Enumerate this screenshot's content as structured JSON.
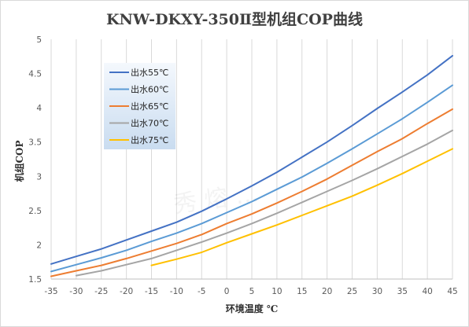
{
  "chart_data": {
    "type": "line",
    "title": "KNW-DKXY-350Ⅱ型机组COP曲线",
    "xlabel": "环境温度 ℃",
    "ylabel": "机组COP",
    "xlim": [
      -35,
      45
    ],
    "ylim": [
      1.5,
      5
    ],
    "xticks": [
      -35,
      -30,
      -25,
      -20,
      -15,
      -10,
      -5,
      0,
      5,
      10,
      15,
      20,
      25,
      30,
      35,
      40,
      45
    ],
    "yticks": [
      1.5,
      2,
      2.5,
      3,
      3.5,
      4,
      4.5,
      5
    ],
    "grid": "vertical",
    "legend_position": "upper-left inside",
    "watermark": "秀 熔 …",
    "series": [
      {
        "name": "出水55℃",
        "color": "#4472c4",
        "x": [
          -35,
          -30,
          -25,
          -20,
          -15,
          -10,
          -5,
          0,
          5,
          10,
          15,
          20,
          25,
          30,
          35,
          40,
          45
        ],
        "y": [
          1.72,
          1.83,
          1.94,
          2.07,
          2.2,
          2.33,
          2.49,
          2.67,
          2.86,
          3.06,
          3.28,
          3.5,
          3.74,
          3.99,
          4.23,
          4.48,
          4.76
        ]
      },
      {
        "name": "出水60℃",
        "color": "#5b9bd5",
        "x": [
          -35,
          -30,
          -25,
          -20,
          -15,
          -10,
          -5,
          0,
          5,
          10,
          15,
          20,
          25,
          30,
          35,
          40,
          45
        ],
        "y": [
          1.61,
          1.71,
          1.81,
          1.92,
          2.05,
          2.17,
          2.31,
          2.47,
          2.63,
          2.81,
          2.99,
          3.19,
          3.4,
          3.62,
          3.84,
          4.08,
          4.33
        ]
      },
      {
        "name": "出水65℃",
        "color": "#ed7d31",
        "x": [
          -35,
          -30,
          -25,
          -20,
          -15,
          -10,
          -5,
          0,
          5,
          10,
          15,
          20,
          25,
          30,
          35,
          40,
          45
        ],
        "y": [
          1.54,
          1.62,
          1.7,
          1.8,
          1.91,
          2.02,
          2.15,
          2.31,
          2.45,
          2.61,
          2.78,
          2.96,
          3.16,
          3.36,
          3.55,
          3.77,
          3.98
        ]
      },
      {
        "name": "出水70℃",
        "color": "#a5a5a5",
        "x": [
          -30,
          -25,
          -20,
          -15,
          -10,
          -5,
          0,
          5,
          10,
          15,
          20,
          25,
          30,
          35,
          40,
          45
        ],
        "y": [
          1.55,
          1.62,
          1.71,
          1.8,
          1.92,
          2.04,
          2.17,
          2.31,
          2.46,
          2.62,
          2.78,
          2.94,
          3.11,
          3.29,
          3.47,
          3.67
        ]
      },
      {
        "name": "出水75℃",
        "color": "#ffc000",
        "x": [
          -15,
          -10,
          -5,
          0,
          5,
          10,
          15,
          20,
          25,
          30,
          35,
          40,
          45
        ],
        "y": [
          1.7,
          1.79,
          1.89,
          2.03,
          2.16,
          2.29,
          2.43,
          2.57,
          2.71,
          2.87,
          3.04,
          3.22,
          3.4
        ]
      }
    ]
  }
}
